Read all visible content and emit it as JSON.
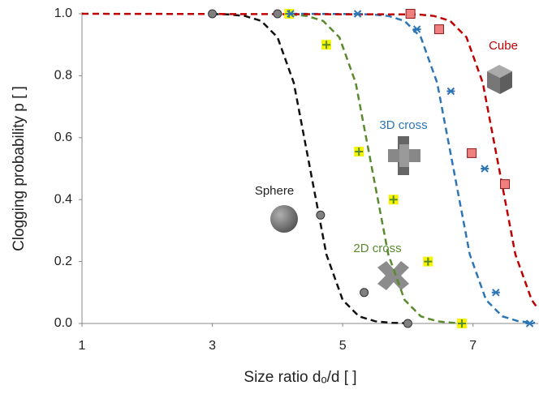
{
  "chart_data": {
    "type": "scatter",
    "x_label": "Size ratio dₒ/d [ ]",
    "y_label": "Clogging probability p [ ]",
    "xlim": [
      1,
      8
    ],
    "ylim": [
      0,
      1
    ],
    "xticks": [
      1,
      3,
      5,
      7
    ],
    "yticks": [
      {
        "value": 0,
        "label": "0.0"
      },
      {
        "value": 0.2,
        "label": "0.2"
      },
      {
        "value": 0.4,
        "label": "0.4"
      },
      {
        "value": 0.6,
        "label": "0.6"
      },
      {
        "value": 0.8,
        "label": "0.8"
      },
      {
        "value": 1,
        "label": "1.0"
      }
    ],
    "series": [
      {
        "name": "Sphere",
        "color": "#222222",
        "marker": "circle",
        "x": [
          3,
          4,
          4.66,
          5.33,
          6.0
        ],
        "values": [
          1.0,
          1.0,
          0.35,
          0.1,
          0
        ]
      },
      {
        "name": "2D cross",
        "color": "#5a8a2e",
        "marker": "plus",
        "x": [
          4.18,
          4.75,
          5.25,
          5.78,
          6.31,
          6.83
        ],
        "values": [
          1.0,
          0.9,
          0.555,
          0.4,
          0.2,
          0
        ]
      },
      {
        "name": "3D cross",
        "color": "#2e75b6",
        "marker": "asterisk",
        "x": [
          4.2,
          5.23,
          6.14,
          6.66,
          7.18,
          7.35,
          7.87
        ],
        "values": [
          1.0,
          1.0,
          0.95,
          0.75,
          0.5,
          0.1,
          0
        ]
      },
      {
        "name": "Cube",
        "color": "#c00000",
        "marker": "square",
        "x": [
          6.04,
          6.48,
          6.98,
          7.49
        ],
        "values": [
          1.0,
          0.95,
          0.55,
          0.45
        ]
      }
    ],
    "curves": [
      {
        "color": "#111111",
        "x": [
          3,
          3.25,
          3.5,
          3.75,
          4,
          4.25,
          4.5,
          4.75,
          5,
          5.25,
          5.5,
          5.75,
          6
        ],
        "values": [
          0.999,
          0.998,
          0.993,
          0.977,
          0.924,
          0.777,
          0.5,
          0.223,
          0.076,
          0.023,
          0.007,
          0.002,
          0.001
        ]
      },
      {
        "color": "#5a8a2e",
        "x": [
          4.2,
          4.45,
          4.7,
          4.95,
          5.2,
          5.45,
          5.7,
          5.95,
          6.2,
          6.45,
          6.7,
          6.95
        ],
        "values": [
          0.998,
          0.993,
          0.977,
          0.924,
          0.777,
          0.5,
          0.223,
          0.076,
          0.023,
          0.007,
          0.002,
          0.001
        ]
      },
      {
        "color": "#2e75b6",
        "x": [
          4.2,
          5.2,
          5.45,
          5.7,
          5.95,
          6.2,
          6.45,
          6.7,
          6.95,
          7.2,
          7.45,
          7.7,
          7.95
        ],
        "values": [
          1.0,
          0.999,
          0.998,
          0.993,
          0.977,
          0.924,
          0.777,
          0.5,
          0.223,
          0.076,
          0.023,
          0.007,
          0.002
        ]
      },
      {
        "color": "#c00000",
        "x": [
          1,
          6.15,
          6.4,
          6.65,
          6.9,
          7.15,
          7.4,
          7.65,
          7.9,
          8
        ],
        "values": [
          1.0,
          0.998,
          0.993,
          0.977,
          0.924,
          0.777,
          0.5,
          0.223,
          0.076,
          0.047
        ]
      }
    ]
  }
}
